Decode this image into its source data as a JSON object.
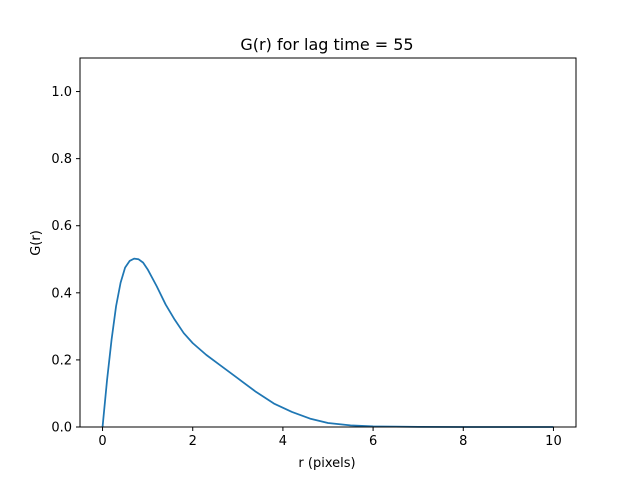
{
  "chart_data": {
    "type": "line",
    "title": "G(r) for lag time = 55",
    "xlabel": "r (pixels)",
    "ylabel": "G(r)",
    "xlim": [
      -0.5,
      10.5
    ],
    "ylim": [
      0,
      1.1
    ],
    "xticks": [
      0,
      2,
      4,
      6,
      8,
      10
    ],
    "yticks": [
      0.0,
      0.2,
      0.4,
      0.6,
      0.8,
      1.0
    ],
    "xtick_labels": [
      "0",
      "2",
      "4",
      "6",
      "8",
      "10"
    ],
    "ytick_labels": [
      "0.0",
      "0.2",
      "0.4",
      "0.6",
      "0.8",
      "1.0"
    ],
    "grid": false,
    "series": [
      {
        "color": "#1f77b4",
        "x": [
          0,
          0.1,
          0.2,
          0.3,
          0.4,
          0.5,
          0.6,
          0.7,
          0.8,
          0.9,
          1.0,
          1.2,
          1.4,
          1.6,
          1.8,
          2.0,
          2.3,
          2.6,
          3.0,
          3.4,
          3.8,
          4.2,
          4.6,
          5.0,
          5.5,
          6.0,
          6.5,
          7.0,
          8.0,
          9.0,
          10.0
        ],
        "y": [
          0.0,
          0.14,
          0.26,
          0.36,
          0.43,
          0.475,
          0.495,
          0.502,
          0.5,
          0.49,
          0.47,
          0.42,
          0.365,
          0.32,
          0.28,
          0.25,
          0.215,
          0.185,
          0.145,
          0.105,
          0.07,
          0.045,
          0.025,
          0.012,
          0.005,
          0.002,
          0.001,
          0.0005,
          0.0001,
          0.0,
          0.0
        ]
      }
    ]
  }
}
